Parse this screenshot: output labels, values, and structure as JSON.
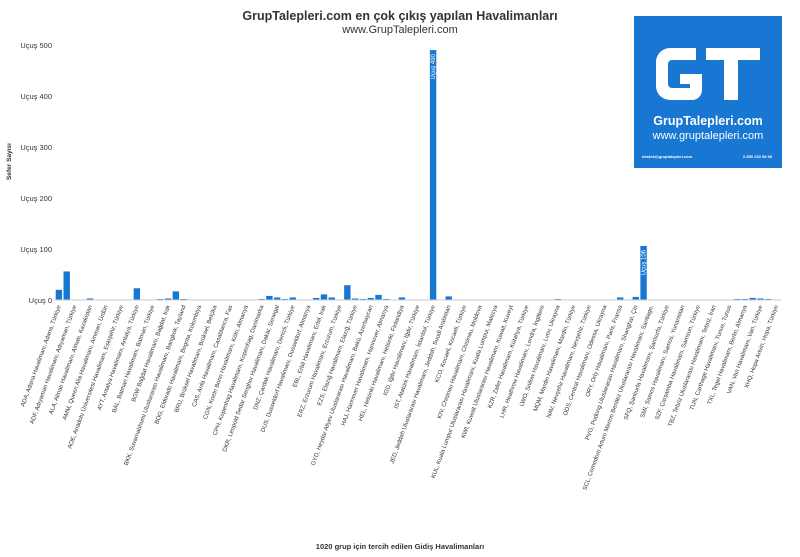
{
  "logo": {
    "name": "GrupTalepleri.com",
    "url": "www.gruptalepleri.com",
    "email": "destek@gruptalepleri.com",
    "phone": "0 850 233 98 98"
  },
  "colors": {
    "bar": "#1877d2",
    "axis": "#cccccc",
    "grid": "#e6e6e6",
    "text": "#333333"
  },
  "chart_data": {
    "type": "bar",
    "title": "GrupTalepleri.com en çok çıkış yapılan Havalimanları",
    "subtitle": "www.GrupTalepleri.com",
    "xlabel": "1020 grup için tercih edilen Gidiş Havalimanları",
    "ylabel": "Sefer Sayısı",
    "ytick_prefix": "Uçuş",
    "yticks": [
      0,
      100,
      200,
      300,
      400,
      500
    ],
    "ylim": [
      0,
      500
    ],
    "grid": false,
    "categories": [
      "ADA, Adana Havalimanı, Adana, Türkiye",
      "ADF, Adıyaman Havalimanı, Adıyaman, Türkiye",
      "ALA, Almatı Havalimanı, Almatı, Kazakistan",
      "AMM, Queen Alia Havalimanı, Amman, Ürdün",
      "AOE, Anadolu Üniversitesi Havalimanı, Eskişehir, Türkiye",
      "AYT, Antalya Havalimanı, Antalya, Türkiye",
      "BAL, Batman Havalimanı, Batman, Türkiye",
      "BGW Bağdat Havalimanı, Bağdat, Irak",
      "BKK, Suvarnabhumi Uluslararası Havalimanı, Bangkok, Tayland",
      "BOG, Eldorado Havalimanı, Bogota, Kolombiya",
      "BRU, Brüksel Havalimanı, Brüksel, Belçika",
      "CAS, Anfa Havalimanı, Casablanca, Fas",
      "CGN, Koeln Bonn Havalimanı, Köln, Almanya",
      "CPH, Kopenhag Havalimanı, Kopenhag, Danimarka",
      "DKR, Leopold Sedar Senghor Havalimanı, Dakar, Senegal",
      "DNZ, Çardak Havalimanı, Denizli, Türkiye",
      "DUS, Dusseldorf Havalimanı, Dusseldorf, Almanya",
      "EBL, Erbil Havalimanı, Erbil, Irak",
      "ERZ, Erzurum Havalimanı, Erzurum, Türkiye",
      "EZS, Elazığ Havalimanı, Elazığ, Türkiye",
      "GYD, Heydar Aliyev Uluslararası Havalimanı, Bakü, Azerbaycan",
      "HAJ, Hannover Havalimanı, Hannover, Almanya",
      "HEL, Helsinki Havalimanı, Helsinki, Finlandiya",
      "IGD, Iğdır Havalimanı, Iğdır, Türkiye",
      "IST, Atatürk Havalimanı, İstanbul, Türkiye",
      "JED, Jeddah Uluslararası Havalimanı, Jeddah, Suudi Arabistan",
      "KCO, Kocaeli, Kocaeli, Türkiye",
      "KIV, Chisinau Havalimanı, Chisinau, Moldova",
      "KUL, Kuala Lumpur Uluslararası Havalimanı, Kuala Lumpur, Malezya",
      "KWI, Kuwait Uluslararası Havalimanı, Kuwait, Kuveyt",
      "KZR, Zafer Havalimanı, Kütahya, Türkiye",
      "LHR, Heathrow Havalimanı, Londra, İngiltere",
      "LWO, Snilow Havalimanı, Lvov, Ukrayna",
      "MQM, Mardin Havalimanı, Mardin, Türkiye",
      "NAV, Nevşehir Havalimanı, Nevşehir, Türkiye",
      "ODS, Central Havalimanı, Odessa, Ukrayna",
      "ORY, Orly Havalimanı, Paris, Fransa",
      "PVG, Pudong Uluslararası Havalimanı, Shanghai, Çin",
      "SCL, Comodoro Arturo Merino Benitez Uluslararası Havalimanı, Santiago,",
      "SFQ, Şanlıurfa Havalimanı, Şanlıurfa, Türkiye",
      "SMI, Samos Havalimanı, Samos, Yunanistan",
      "SZF, Çarşamba Havalimanı, Samsun, Türkiye",
      "TBZ, Tebriz Uluslararası Havalimanı, Tebriz, İran",
      "TUN, Carthage Havalimanı, Tunus, Tunus",
      "TXL, Tegel Havalimanı, Berlin, Almanya",
      "VAN, Van Havalimanı, Van, Türkiye",
      "XHQ, Hopa Artvin, Hopa, Türkiye"
    ],
    "bar_slots": [
      {
        "v": 20,
        "lbl": 0
      },
      {
        "v": 56,
        "lbl": null
      },
      {
        "v": 1,
        "lbl": 1
      },
      {
        "v": 1,
        "lbl": null
      },
      {
        "v": 3,
        "lbl": 2
      },
      {
        "v": 1,
        "lbl": null
      },
      {
        "v": 1,
        "lbl": 3
      },
      {
        "v": 1,
        "lbl": null
      },
      {
        "v": 1,
        "lbl": 4
      },
      {
        "v": 1,
        "lbl": null
      },
      {
        "v": 23,
        "lbl": 5
      },
      {
        "v": 1,
        "lbl": null
      },
      {
        "v": 1,
        "lbl": 6
      },
      {
        "v": 2,
        "lbl": null
      },
      {
        "v": 3,
        "lbl": 7
      },
      {
        "v": 17,
        "lbl": null
      },
      {
        "v": 2,
        "lbl": 8
      },
      {
        "v": 1,
        "lbl": null
      },
      {
        "v": 1,
        "lbl": 9
      },
      {
        "v": 1,
        "lbl": null
      },
      {
        "v": 1,
        "lbl": 10
      },
      {
        "v": 1,
        "lbl": null
      },
      {
        "v": 1,
        "lbl": 11
      },
      {
        "v": 1,
        "lbl": null
      },
      {
        "v": 1,
        "lbl": 12
      },
      {
        "v": 1,
        "lbl": null
      },
      {
        "v": 2,
        "lbl": 13
      },
      {
        "v": 8,
        "lbl": null
      },
      {
        "v": 5,
        "lbl": 14
      },
      {
        "v": 2,
        "lbl": null
      },
      {
        "v": 5,
        "lbl": 15
      },
      {
        "v": 1,
        "lbl": null
      },
      {
        "v": 1,
        "lbl": 16
      },
      {
        "v": 4,
        "lbl": null
      },
      {
        "v": 11,
        "lbl": 17
      },
      {
        "v": 5,
        "lbl": null
      },
      {
        "v": 1,
        "lbl": 18
      },
      {
        "v": 29,
        "lbl": null
      },
      {
        "v": 3,
        "lbl": 19
      },
      {
        "v": 2,
        "lbl": null
      },
      {
        "v": 4,
        "lbl": 20
      },
      {
        "v": 10,
        "lbl": null
      },
      {
        "v": 2,
        "lbl": 21
      },
      {
        "v": 1,
        "lbl": null
      },
      {
        "v": 5,
        "lbl": 22
      },
      {
        "v": 1,
        "lbl": null
      },
      {
        "v": 1,
        "lbl": 23
      },
      {
        "v": 1,
        "lbl": null
      },
      {
        "v": 490,
        "lbl": 24,
        "data_label": "Uçuş 490"
      },
      {
        "v": 1,
        "lbl": null
      },
      {
        "v": 7,
        "lbl": 25
      },
      {
        "v": 1,
        "lbl": null
      },
      {
        "v": 1,
        "lbl": 26
      },
      {
        "v": 1,
        "lbl": null
      },
      {
        "v": 1,
        "lbl": 27
      },
      {
        "v": 1,
        "lbl": null
      },
      {
        "v": 1,
        "lbl": 28
      },
      {
        "v": 1,
        "lbl": null
      },
      {
        "v": 1,
        "lbl": 29
      },
      {
        "v": 1,
        "lbl": null
      },
      {
        "v": 1,
        "lbl": 30
      },
      {
        "v": 1,
        "lbl": null
      },
      {
        "v": 1,
        "lbl": 31
      },
      {
        "v": 1,
        "lbl": null
      },
      {
        "v": 2,
        "lbl": 32
      },
      {
        "v": 1,
        "lbl": null
      },
      {
        "v": 1,
        "lbl": 33
      },
      {
        "v": 1,
        "lbl": null
      },
      {
        "v": 1,
        "lbl": 34
      },
      {
        "v": 1,
        "lbl": null
      },
      {
        "v": 1,
        "lbl": 35
      },
      {
        "v": 1,
        "lbl": null
      },
      {
        "v": 5,
        "lbl": 36
      },
      {
        "v": 1,
        "lbl": null
      },
      {
        "v": 6,
        "lbl": 37
      },
      {
        "v": 106,
        "lbl": null,
        "data_label": "Uçuş 106"
      },
      {
        "v": 1,
        "lbl": 38
      },
      {
        "v": 1,
        "lbl": null
      },
      {
        "v": 1,
        "lbl": 39
      },
      {
        "v": 1,
        "lbl": null
      },
      {
        "v": 1,
        "lbl": 40
      },
      {
        "v": 1,
        "lbl": null
      },
      {
        "v": 1,
        "lbl": 41
      },
      {
        "v": 1,
        "lbl": null
      },
      {
        "v": 1,
        "lbl": 42
      },
      {
        "v": 1,
        "lbl": null
      },
      {
        "v": 1,
        "lbl": 43
      },
      {
        "v": 2,
        "lbl": null
      },
      {
        "v": 2,
        "lbl": 44
      },
      {
        "v": 4,
        "lbl": null
      },
      {
        "v": 3,
        "lbl": 45
      },
      {
        "v": 2,
        "lbl": null
      },
      {
        "v": 1,
        "lbl": 46
      }
    ]
  }
}
